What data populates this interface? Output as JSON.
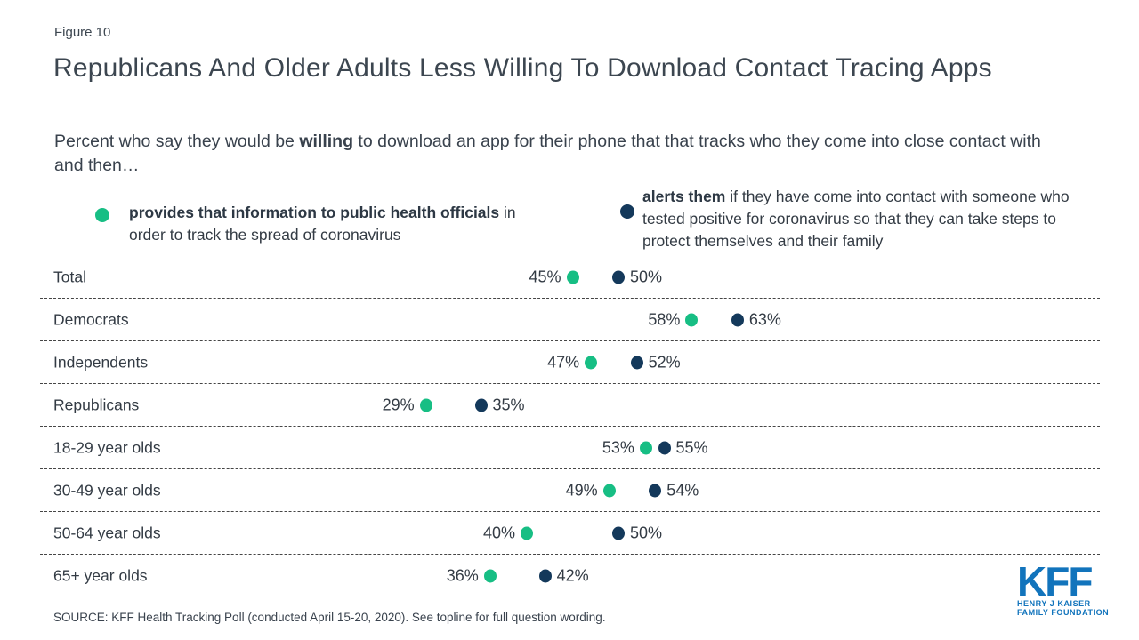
{
  "figure_label": "Figure 10",
  "title": "Republicans And Older Adults Less Willing To Download Contact Tracing Apps",
  "subtitle": {
    "prefix": "Percent who say they would be ",
    "bold": "willing",
    "suffix": " to download an app for their phone that that tracks who they come into close contact with and then…"
  },
  "legend": [
    {
      "bold": "provides that information to public health officials",
      "rest": " in order to track the spread of coronavirus",
      "color": "#17be84"
    },
    {
      "bold": "alerts them",
      "rest": " if they have come into contact with someone who tested positive for coronavirus so that they can take steps to protect themselves and their family",
      "color": "#14395b"
    }
  ],
  "chart_data": {
    "type": "scatter",
    "categories": [
      "Total",
      "Democrats",
      "Independents",
      "Republicans",
      "18-29 year olds",
      "30-49 year olds",
      "50-64 year olds",
      "65+ year olds"
    ],
    "series": [
      {
        "name": "provides that information to public health officials",
        "color": "#17be84",
        "values": [
          45,
          58,
          47,
          29,
          53,
          49,
          40,
          36
        ]
      },
      {
        "name": "alerts them",
        "color": "#14395b",
        "values": [
          50,
          63,
          52,
          35,
          55,
          54,
          50,
          42
        ]
      }
    ],
    "value_suffix": "%",
    "xlim": [
      0,
      100
    ],
    "grid": "dashed-row-separators",
    "legend_position": "top"
  },
  "source": "SOURCE: KFF Health Tracking Poll (conducted April 15-20, 2020). See topline for full question wording.",
  "logo": {
    "acronym": "KFF",
    "line1": "HENRY J KAISER",
    "line2": "FAMILY FOUNDATION",
    "color": "#1274bc"
  }
}
